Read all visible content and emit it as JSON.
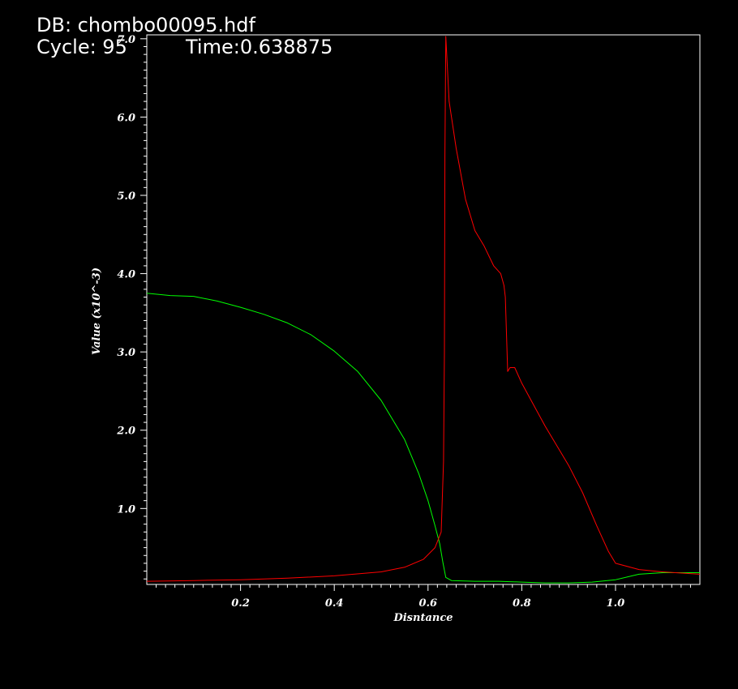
{
  "header": {
    "db_label": "DB: chombo00095.hdf",
    "cycle_label": "Cycle: 95",
    "time_label": "Time:0.638875"
  },
  "chart_data": {
    "type": "line",
    "xlabel": "Disntance",
    "ylabel": "Value (x10^-3)",
    "xlim": [
      0.0,
      1.18
    ],
    "ylim": [
      0.03,
      7.05
    ],
    "x_ticks": [
      0.2,
      0.4,
      0.6,
      0.8,
      1.0
    ],
    "x_tick_labels": [
      "0.2",
      "0.4",
      "0.6",
      "0.8",
      "1.0"
    ],
    "y_ticks": [
      1.0,
      2.0,
      3.0,
      4.0,
      5.0,
      6.0,
      7.0
    ],
    "y_tick_labels": [
      "1.0",
      "2.0",
      "3.0",
      "4.0",
      "5.0",
      "6.0",
      "7.0"
    ],
    "grid": false,
    "series": [
      {
        "color": "#00ff00",
        "x": [
          0.0,
          0.05,
          0.1,
          0.15,
          0.2,
          0.25,
          0.3,
          0.35,
          0.4,
          0.45,
          0.5,
          0.55,
          0.58,
          0.6,
          0.615,
          0.625,
          0.632,
          0.638,
          0.65,
          0.7,
          0.75,
          0.8,
          0.85,
          0.9,
          0.95,
          1.0,
          1.05,
          1.1,
          1.18
        ],
        "y": [
          3.75,
          3.72,
          3.71,
          3.65,
          3.57,
          3.48,
          3.37,
          3.22,
          3.01,
          2.75,
          2.38,
          1.88,
          1.45,
          1.1,
          0.78,
          0.55,
          0.3,
          0.12,
          0.08,
          0.07,
          0.07,
          0.06,
          0.05,
          0.05,
          0.06,
          0.09,
          0.16,
          0.18,
          0.18
        ]
      },
      {
        "color": "#ff0000",
        "x": [
          0.0,
          0.1,
          0.2,
          0.3,
          0.4,
          0.5,
          0.55,
          0.59,
          0.615,
          0.628,
          0.633,
          0.635,
          0.636,
          0.638,
          0.645,
          0.66,
          0.68,
          0.7,
          0.72,
          0.74,
          0.755,
          0.762,
          0.765,
          0.77,
          0.775,
          0.785,
          0.8,
          0.85,
          0.9,
          0.93,
          0.96,
          0.985,
          1.0,
          1.05,
          1.1,
          1.18
        ],
        "y": [
          0.07,
          0.08,
          0.09,
          0.11,
          0.14,
          0.19,
          0.25,
          0.35,
          0.5,
          0.7,
          1.6,
          3.0,
          5.5,
          7.03,
          6.2,
          5.6,
          4.95,
          4.55,
          4.35,
          4.1,
          4.0,
          3.85,
          3.7,
          2.75,
          2.8,
          2.8,
          2.6,
          2.05,
          1.55,
          1.2,
          0.78,
          0.45,
          0.3,
          0.22,
          0.19,
          0.16
        ]
      }
    ]
  }
}
